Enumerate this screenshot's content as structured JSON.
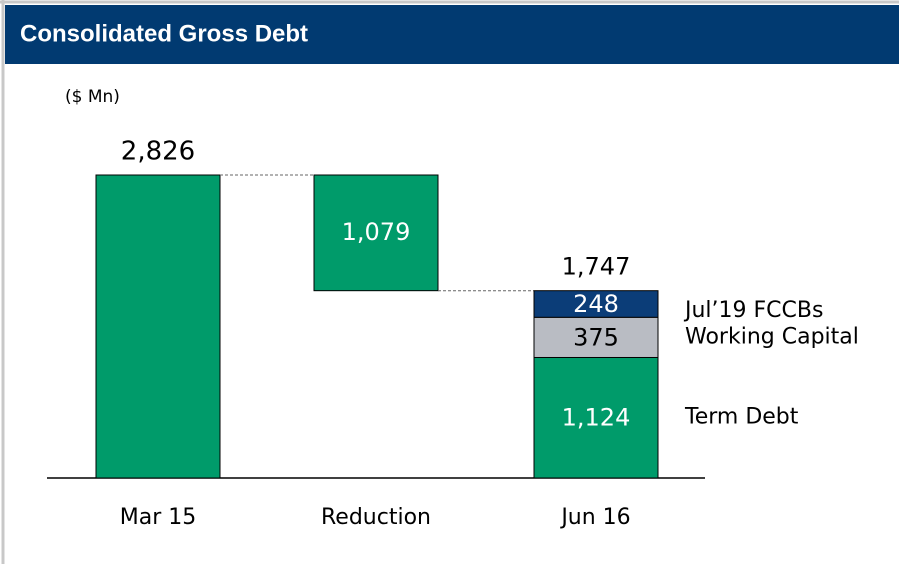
{
  "chart_data": {
    "type": "waterfall",
    "title": "Consolidated Gross Debt",
    "unit_label": "($ Mn)",
    "categories": [
      "Mar 15",
      "Reduction",
      "Jun 16"
    ],
    "values": [
      2826,
      1079,
      1747
    ],
    "value_labels": [
      "2,826",
      "1,079",
      "1,747"
    ],
    "color": "#009b6a",
    "series": [
      {
        "name": "Term Debt",
        "color": "#009b6a",
        "values": [
          null,
          null,
          1124
        ],
        "value_labels": [
          null,
          null,
          "1,124"
        ]
      },
      {
        "name": "Working Capital",
        "color": "#b9bcc3",
        "values": [
          null,
          null,
          375
        ],
        "value_labels": [
          null,
          null,
          "375"
        ]
      },
      {
        "name": "Jul’19 FCCBs",
        "color": "#0b3d78",
        "values": [
          null,
          null,
          248
        ],
        "value_labels": [
          null,
          null,
          "248"
        ]
      }
    ]
  }
}
